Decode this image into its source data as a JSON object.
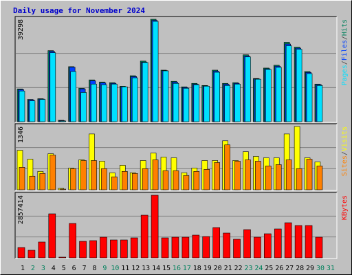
{
  "chart_data": [
    {
      "type": "bar",
      "title": "Daily usage for November 2024",
      "ylim": [
        0,
        39298
      ],
      "yticks": [
        39298
      ],
      "legend_separator": "/",
      "series": [
        {
          "name": "Hits",
          "color": "#00805c",
          "values": [
            12563,
            8554,
            8821,
            27266,
            535,
            21118,
            12831,
            16039,
            15237,
            14970,
            13633,
            17643,
            23257,
            39298,
            19782,
            15505,
            13366,
            14703,
            13901,
            19782,
            14703,
            14970,
            25663,
            16574,
            20584,
            21653,
            30475,
            28604,
            19247,
            14436,
            null
          ]
        },
        {
          "name": "Files",
          "color": "#0040ff",
          "values": [
            12300,
            8400,
            8700,
            27000,
            400,
            20900,
            12600,
            15700,
            14900,
            14700,
            13400,
            17300,
            22900,
            38900,
            19600,
            15200,
            13100,
            14400,
            13700,
            19400,
            14400,
            14700,
            25200,
            16400,
            20300,
            21300,
            29800,
            28200,
            18900,
            14200,
            null
          ]
        },
        {
          "name": "Pages",
          "color": "#00e0ff",
          "values": [
            11761,
            8019,
            8554,
            26463,
            267,
            19246,
            11227,
            14434,
            14167,
            14434,
            13365,
            16840,
            22721,
            38491,
            19513,
            14702,
            12830,
            14167,
            13632,
            18978,
            13900,
            14434,
            24859,
            16305,
            20048,
            20849,
            29136,
            27799,
            18444,
            13900,
            null
          ]
        }
      ]
    },
    {
      "type": "bar",
      "ylim": [
        0,
        1346
      ],
      "yticks": [
        1346
      ],
      "legend_separator": "/",
      "series": [
        {
          "name": "Visits",
          "color": "#ffff00",
          "values": [
            839,
            651,
            391,
            767,
            29,
            463,
            637,
            1187,
            608,
            362,
            521,
            362,
            622,
            781,
            695,
            680,
            362,
            463,
            622,
            622,
            1042,
            622,
            810,
            709,
            680,
            680,
            1187,
            1346,
            680,
            593,
            null
          ]
        },
        {
          "name": "Sites",
          "color": "#ff8000",
          "values": [
            478,
            289,
            347,
            738,
            14,
            449,
            622,
            622,
            449,
            275,
            391,
            347,
            449,
            637,
            405,
            405,
            304,
            391,
            434,
            579,
            955,
            608,
            637,
            608,
            506,
            535,
            637,
            449,
            651,
            506,
            null
          ]
        }
      ]
    },
    {
      "type": "bar",
      "ylim": [
        0,
        2857414
      ],
      "yticks": [
        2857414
      ],
      "categories": [
        "1",
        "2",
        "3",
        "4",
        "5",
        "6",
        "7",
        "8",
        "9",
        "10",
        "11",
        "12",
        "13",
        "14",
        "15",
        "16",
        "17",
        "18",
        "19",
        "20",
        "21",
        "22",
        "23",
        "24",
        "25",
        "26",
        "27",
        "28",
        "29",
        "30",
        "31"
      ],
      "category_colors": [
        "#000000",
        "#00805c",
        "#00805c",
        "#000000",
        "#000000",
        "#000000",
        "#000000",
        "#000000",
        "#00805c",
        "#00805c",
        "#000000",
        "#000000",
        "#000000",
        "#000000",
        "#000000",
        "#00805c",
        "#00805c",
        "#000000",
        "#000000",
        "#000000",
        "#000000",
        "#000000",
        "#00805c",
        "#00805c",
        "#000000",
        "#000000",
        "#000000",
        "#000000",
        "#000000",
        "#00805c",
        "#00805c"
      ],
      "series": [
        {
          "name": "KBytes",
          "color": "#ff0000",
          "values": [
            471000,
            345400,
            722200,
            2009600,
            31400,
            1570000,
            753600,
            785000,
            942000,
            816400,
            816400,
            910600,
            1946800,
            2857414,
            910600,
            942000,
            942000,
            1036200,
            973400,
            1381600,
            1130400,
            847800,
            1287400,
            942000,
            1099000,
            1318800,
            1601400,
            1475800,
            1475800,
            942000,
            null
          ]
        }
      ]
    }
  ]
}
